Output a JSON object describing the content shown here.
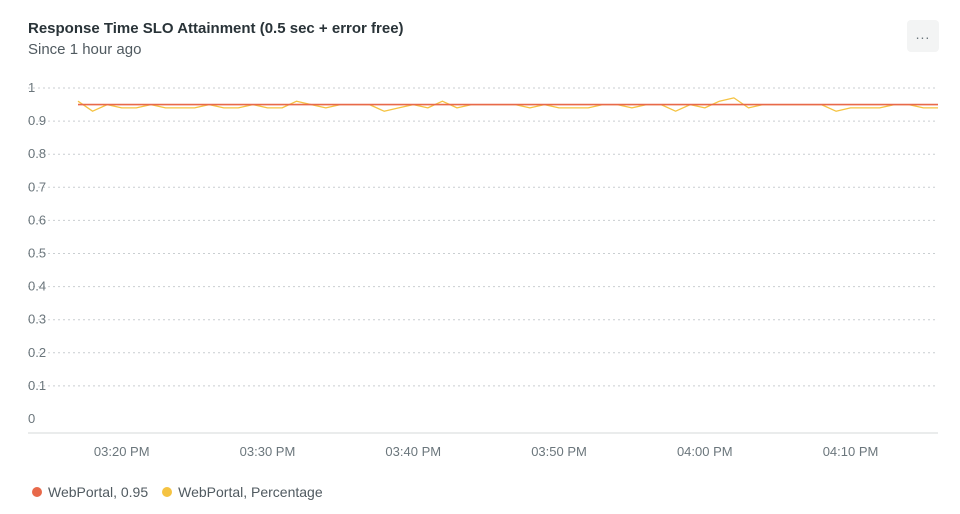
{
  "header": {
    "title": "Response Time SLO Attainment (0.5 sec + error free)",
    "subtitle": "Since 1 hour ago",
    "more_label": "..."
  },
  "chart_data": {
    "type": "line",
    "title": "Response Time SLO Attainment (0.5 sec + error free)",
    "subtitle": "Since 1 hour ago",
    "xlabel": "",
    "ylabel": "",
    "ylim": [
      0,
      1
    ],
    "y_ticks": [
      "0",
      "0.1",
      "0.2",
      "0.3",
      "0.4",
      "0.5",
      "0.6",
      "0.7",
      "0.8",
      "0.9",
      "1"
    ],
    "x_ticks": [
      "03:20 PM",
      "03:30 PM",
      "03:40 PM",
      "03:50 PM",
      "04:00 PM",
      "04:10 PM"
    ],
    "x_range": [
      "03:17 PM",
      "04:16 PM"
    ],
    "grid": "horizontal-dotted",
    "legend_position": "bottom-left",
    "x": [
      "03:17 PM",
      "03:18 PM",
      "03:19 PM",
      "03:20 PM",
      "03:21 PM",
      "03:22 PM",
      "03:23 PM",
      "03:24 PM",
      "03:25 PM",
      "03:26 PM",
      "03:27 PM",
      "03:28 PM",
      "03:29 PM",
      "03:30 PM",
      "03:31 PM",
      "03:32 PM",
      "03:33 PM",
      "03:34 PM",
      "03:35 PM",
      "03:36 PM",
      "03:37 PM",
      "03:38 PM",
      "03:39 PM",
      "03:40 PM",
      "03:41 PM",
      "03:42 PM",
      "03:43 PM",
      "03:44 PM",
      "03:45 PM",
      "03:46 PM",
      "03:47 PM",
      "03:48 PM",
      "03:49 PM",
      "03:50 PM",
      "03:51 PM",
      "03:52 PM",
      "03:53 PM",
      "03:54 PM",
      "03:55 PM",
      "03:56 PM",
      "03:57 PM",
      "03:58 PM",
      "03:59 PM",
      "04:00 PM",
      "04:01 PM",
      "04:02 PM",
      "04:03 PM",
      "04:04 PM",
      "04:05 PM",
      "04:06 PM",
      "04:07 PM",
      "04:08 PM",
      "04:09 PM",
      "04:10 PM",
      "04:11 PM",
      "04:12 PM",
      "04:13 PM",
      "04:14 PM",
      "04:15 PM",
      "04:16 PM"
    ],
    "series": [
      {
        "name": "WebPortal, 0.95",
        "color": "#e8694a",
        "values": [
          0.95,
          0.95,
          0.95,
          0.95,
          0.95,
          0.95,
          0.95,
          0.95,
          0.95,
          0.95,
          0.95,
          0.95,
          0.95,
          0.95,
          0.95,
          0.95,
          0.95,
          0.95,
          0.95,
          0.95,
          0.95,
          0.95,
          0.95,
          0.95,
          0.95,
          0.95,
          0.95,
          0.95,
          0.95,
          0.95,
          0.95,
          0.95,
          0.95,
          0.95,
          0.95,
          0.95,
          0.95,
          0.95,
          0.95,
          0.95,
          0.95,
          0.95,
          0.95,
          0.95,
          0.95,
          0.95,
          0.95,
          0.95,
          0.95,
          0.95,
          0.95,
          0.95,
          0.95,
          0.95,
          0.95,
          0.95,
          0.95,
          0.95,
          0.95,
          0.95
        ]
      },
      {
        "name": "WebPortal, Percentage",
        "color": "#f5c342",
        "values": [
          0.96,
          0.93,
          0.95,
          0.94,
          0.94,
          0.95,
          0.94,
          0.94,
          0.94,
          0.95,
          0.94,
          0.94,
          0.95,
          0.94,
          0.94,
          0.96,
          0.95,
          0.94,
          0.95,
          0.95,
          0.95,
          0.93,
          0.94,
          0.95,
          0.94,
          0.96,
          0.94,
          0.95,
          0.95,
          0.95,
          0.95,
          0.94,
          0.95,
          0.94,
          0.94,
          0.94,
          0.95,
          0.95,
          0.94,
          0.95,
          0.95,
          0.93,
          0.95,
          0.94,
          0.96,
          0.97,
          0.94,
          0.95,
          0.95,
          0.95,
          0.95,
          0.95,
          0.93,
          0.94,
          0.94,
          0.94,
          0.95,
          0.95,
          0.94,
          0.94
        ]
      }
    ]
  },
  "legend": {
    "items": [
      {
        "label": "WebPortal, 0.95",
        "color": "#e8694a"
      },
      {
        "label": "WebPortal, Percentage",
        "color": "#f5c342"
      }
    ]
  }
}
